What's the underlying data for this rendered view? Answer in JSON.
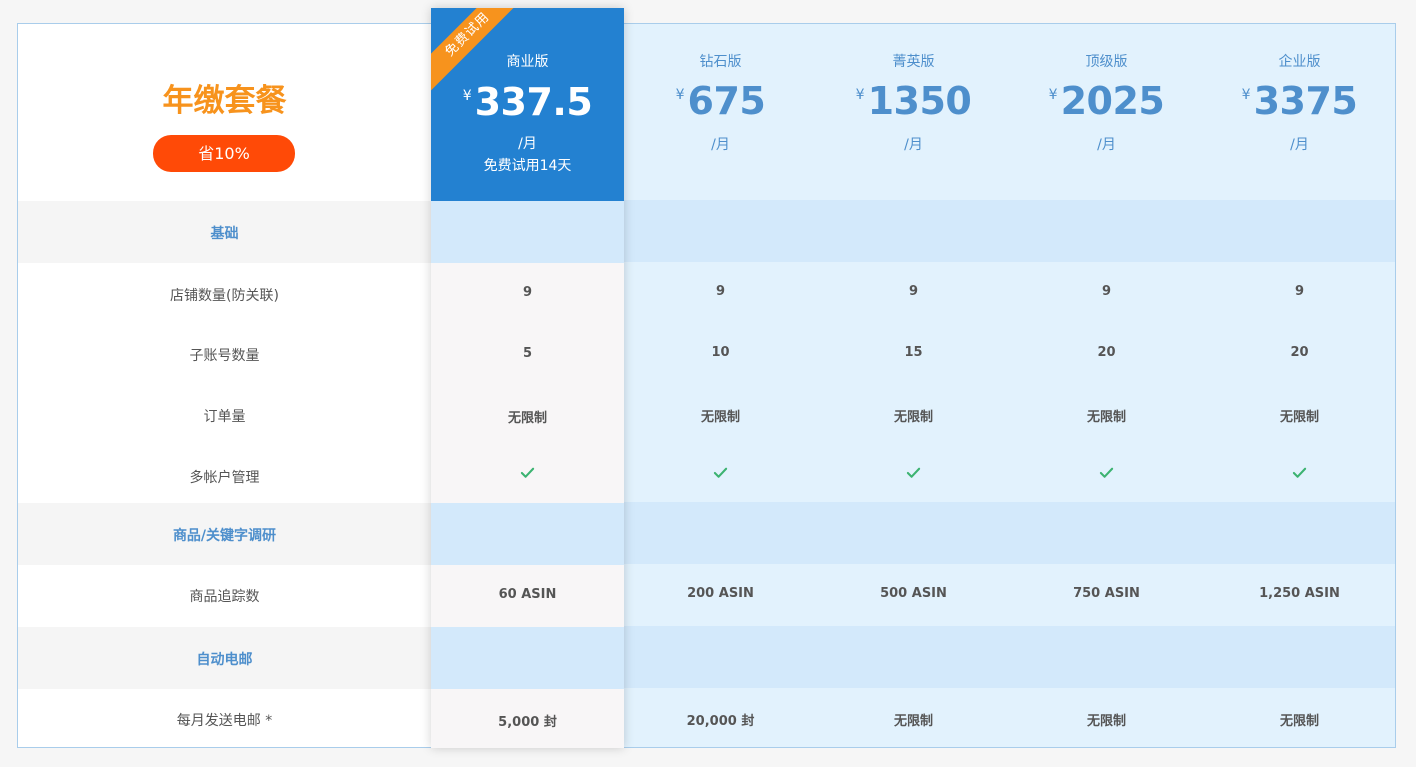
{
  "header": {
    "title": "年缴套餐",
    "badge": "省10%"
  },
  "ribbon": "免费试用",
  "currency_symbol": "¥",
  "per_month": "/月",
  "plans": [
    {
      "name": "商业版",
      "price": "337.5",
      "note": "免费试用14天",
      "featured": true
    },
    {
      "name": "钻石版",
      "price": "675"
    },
    {
      "name": "菁英版",
      "price": "1350"
    },
    {
      "name": "顶级版",
      "price": "2025"
    },
    {
      "name": "企业版",
      "price": "3375"
    }
  ],
  "sections": [
    {
      "title": "基础"
    },
    {
      "title": "商品/关键字调研"
    },
    {
      "title": "自动电邮"
    }
  ],
  "rows": [
    {
      "label": "店铺数量(防关联)",
      "values": [
        "9",
        "9",
        "9",
        "9",
        "9"
      ]
    },
    {
      "label": "子账号数量",
      "values": [
        "5",
        "10",
        "15",
        "20",
        "20"
      ]
    },
    {
      "label": "订单量",
      "values": [
        "无限制",
        "无限制",
        "无限制",
        "无限制",
        "无限制"
      ]
    },
    {
      "label": "多帐户管理",
      "values": [
        "check",
        "check",
        "check",
        "check",
        "check"
      ]
    },
    {
      "label": "商品追踪数",
      "values": [
        "60 ASIN",
        "200 ASIN",
        "500 ASIN",
        "750 ASIN",
        "1,250 ASIN"
      ]
    },
    {
      "label": "每月发送电邮 *",
      "values": [
        "5,000 封",
        "20,000 封",
        "无限制",
        "无限制",
        "无限制"
      ]
    }
  ],
  "colors": {
    "accent_blue": "#2381d1",
    "orange": "#f7931d",
    "badge_red": "#ff4a07",
    "check_green": "#3cb371"
  }
}
